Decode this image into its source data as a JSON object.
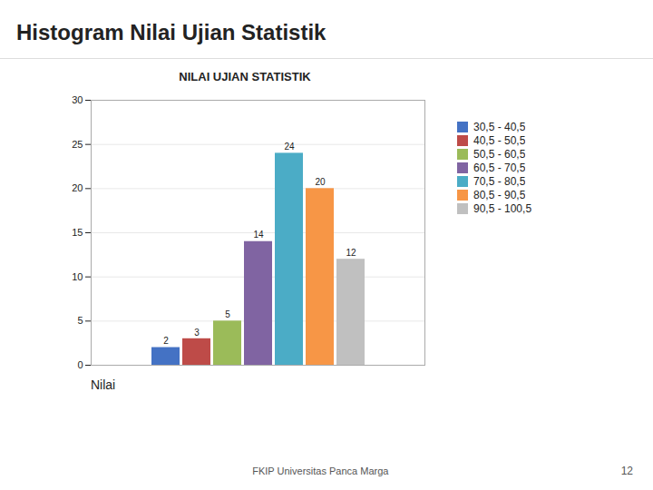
{
  "title": "Histogram Nilai Ujian Statistik",
  "annotations": [
    "FKIP Universitas Panca Marga",
    "12"
  ],
  "chart_data": {
    "type": "bar",
    "title": "NILAI UJIAN STATISTIK",
    "categories": [
      "30,5 - 40,5",
      "40,5 - 50,5",
      "50,5 - 60,5",
      "60,5 - 70,5",
      "70,5 - 80,5",
      "80,5 - 90,5",
      "90,5 - 100,5"
    ],
    "values": [
      2,
      3,
      5,
      14,
      24,
      20,
      12
    ],
    "colors": [
      "#4472C4",
      "#BE4B48",
      "#9BBB59",
      "#8064A2",
      "#4BACC6",
      "#F79646",
      "#C0C0C0"
    ],
    "xlabel": "Nilai",
    "ylim": [
      0,
      30
    ],
    "yticks": [
      0,
      5,
      10,
      15,
      20,
      25,
      30
    ],
    "grid": true,
    "data_labels": true,
    "legend": "right",
    "tick_labels": "y"
  }
}
